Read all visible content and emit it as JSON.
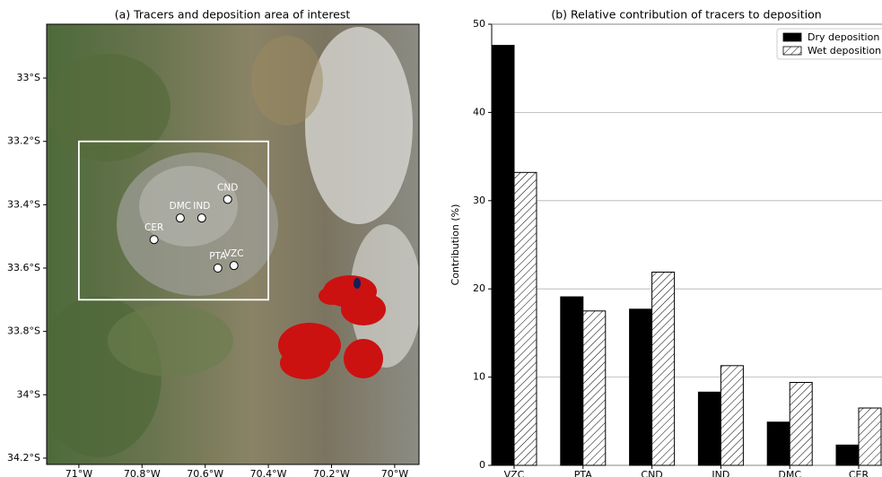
{
  "chart_data": [
    {
      "type": "map",
      "title": "(a) Tracers and deposition area of interest",
      "xlim": [
        -71.102,
        -69.923
      ],
      "ylim": [
        -34.22,
        -32.83
      ],
      "xticks": [
        {
          "value": -71,
          "label": "71°W"
        },
        {
          "value": -70.8,
          "label": "70.8°W"
        },
        {
          "value": -70.6,
          "label": "70.6°W"
        },
        {
          "value": -70.4,
          "label": "70.4°W"
        },
        {
          "value": -70.2,
          "label": "70.2°W"
        },
        {
          "value": -70,
          "label": "70°W"
        }
      ],
      "yticks": [
        {
          "value": -33,
          "label": "33°S"
        },
        {
          "value": -33.2,
          "label": "33.2°S"
        },
        {
          "value": -33.4,
          "label": "33.4°S"
        },
        {
          "value": -33.6,
          "label": "33.6°S"
        },
        {
          "value": -33.8,
          "label": "33.8°S"
        },
        {
          "value": -34,
          "label": "34°S"
        },
        {
          "value": -34.2,
          "label": "34.2°S"
        }
      ],
      "box": {
        "lon": [
          -71.0,
          -70.4
        ],
        "lat": [
          -33.2,
          -33.7
        ]
      },
      "points": [
        {
          "label": "CND",
          "lon": -70.529,
          "lat": -33.383
        },
        {
          "label": "DMC",
          "lon": -70.679,
          "lat": -33.442
        },
        {
          "label": "IND",
          "lon": -70.611,
          "lat": -33.442
        },
        {
          "label": "CER",
          "lon": -70.762,
          "lat": -33.51
        },
        {
          "label": "PTA",
          "lon": -70.56,
          "lat": -33.6
        },
        {
          "label": "VZC",
          "lon": -70.509,
          "lat": -33.592
        }
      ]
    },
    {
      "type": "bar",
      "title": "(b) Relative contribution of tracers to deposition",
      "y_label": "Contribution (%)",
      "categories": [
        "VZC",
        "PTA",
        "CND",
        "IND",
        "DMC",
        "CER"
      ],
      "series": [
        {
          "name": "Dry deposition",
          "color": "#000000",
          "hatch": false,
          "values": [
            47.6,
            19.1,
            17.7,
            8.3,
            4.9,
            2.3
          ]
        },
        {
          "name": "Wet deposition",
          "color": "#ffffff",
          "hatch": true,
          "values": [
            33.2,
            17.5,
            21.9,
            11.3,
            9.4,
            6.5
          ]
        }
      ],
      "ylim": [
        0,
        50
      ],
      "yticks": [
        0,
        10,
        20,
        30,
        40,
        50
      ],
      "grid": true,
      "legend": "upper right"
    }
  ]
}
